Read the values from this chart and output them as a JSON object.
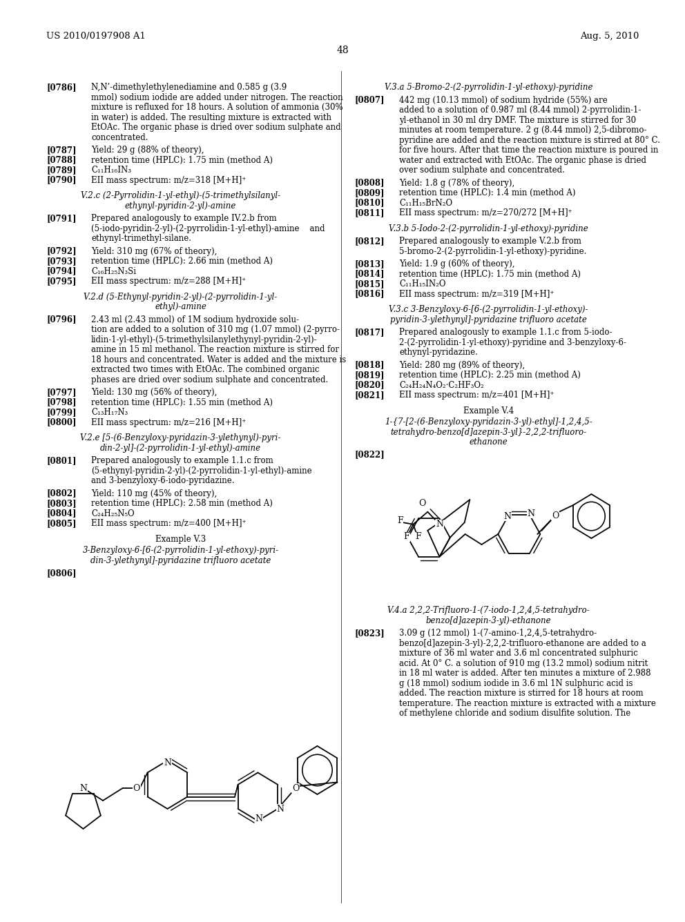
{
  "page_width": 10.24,
  "page_height": 13.2,
  "bg_color": "#ffffff",
  "header_left": "US 2010/0197908 A1",
  "header_right": "Aug. 5, 2010",
  "page_number": "48"
}
